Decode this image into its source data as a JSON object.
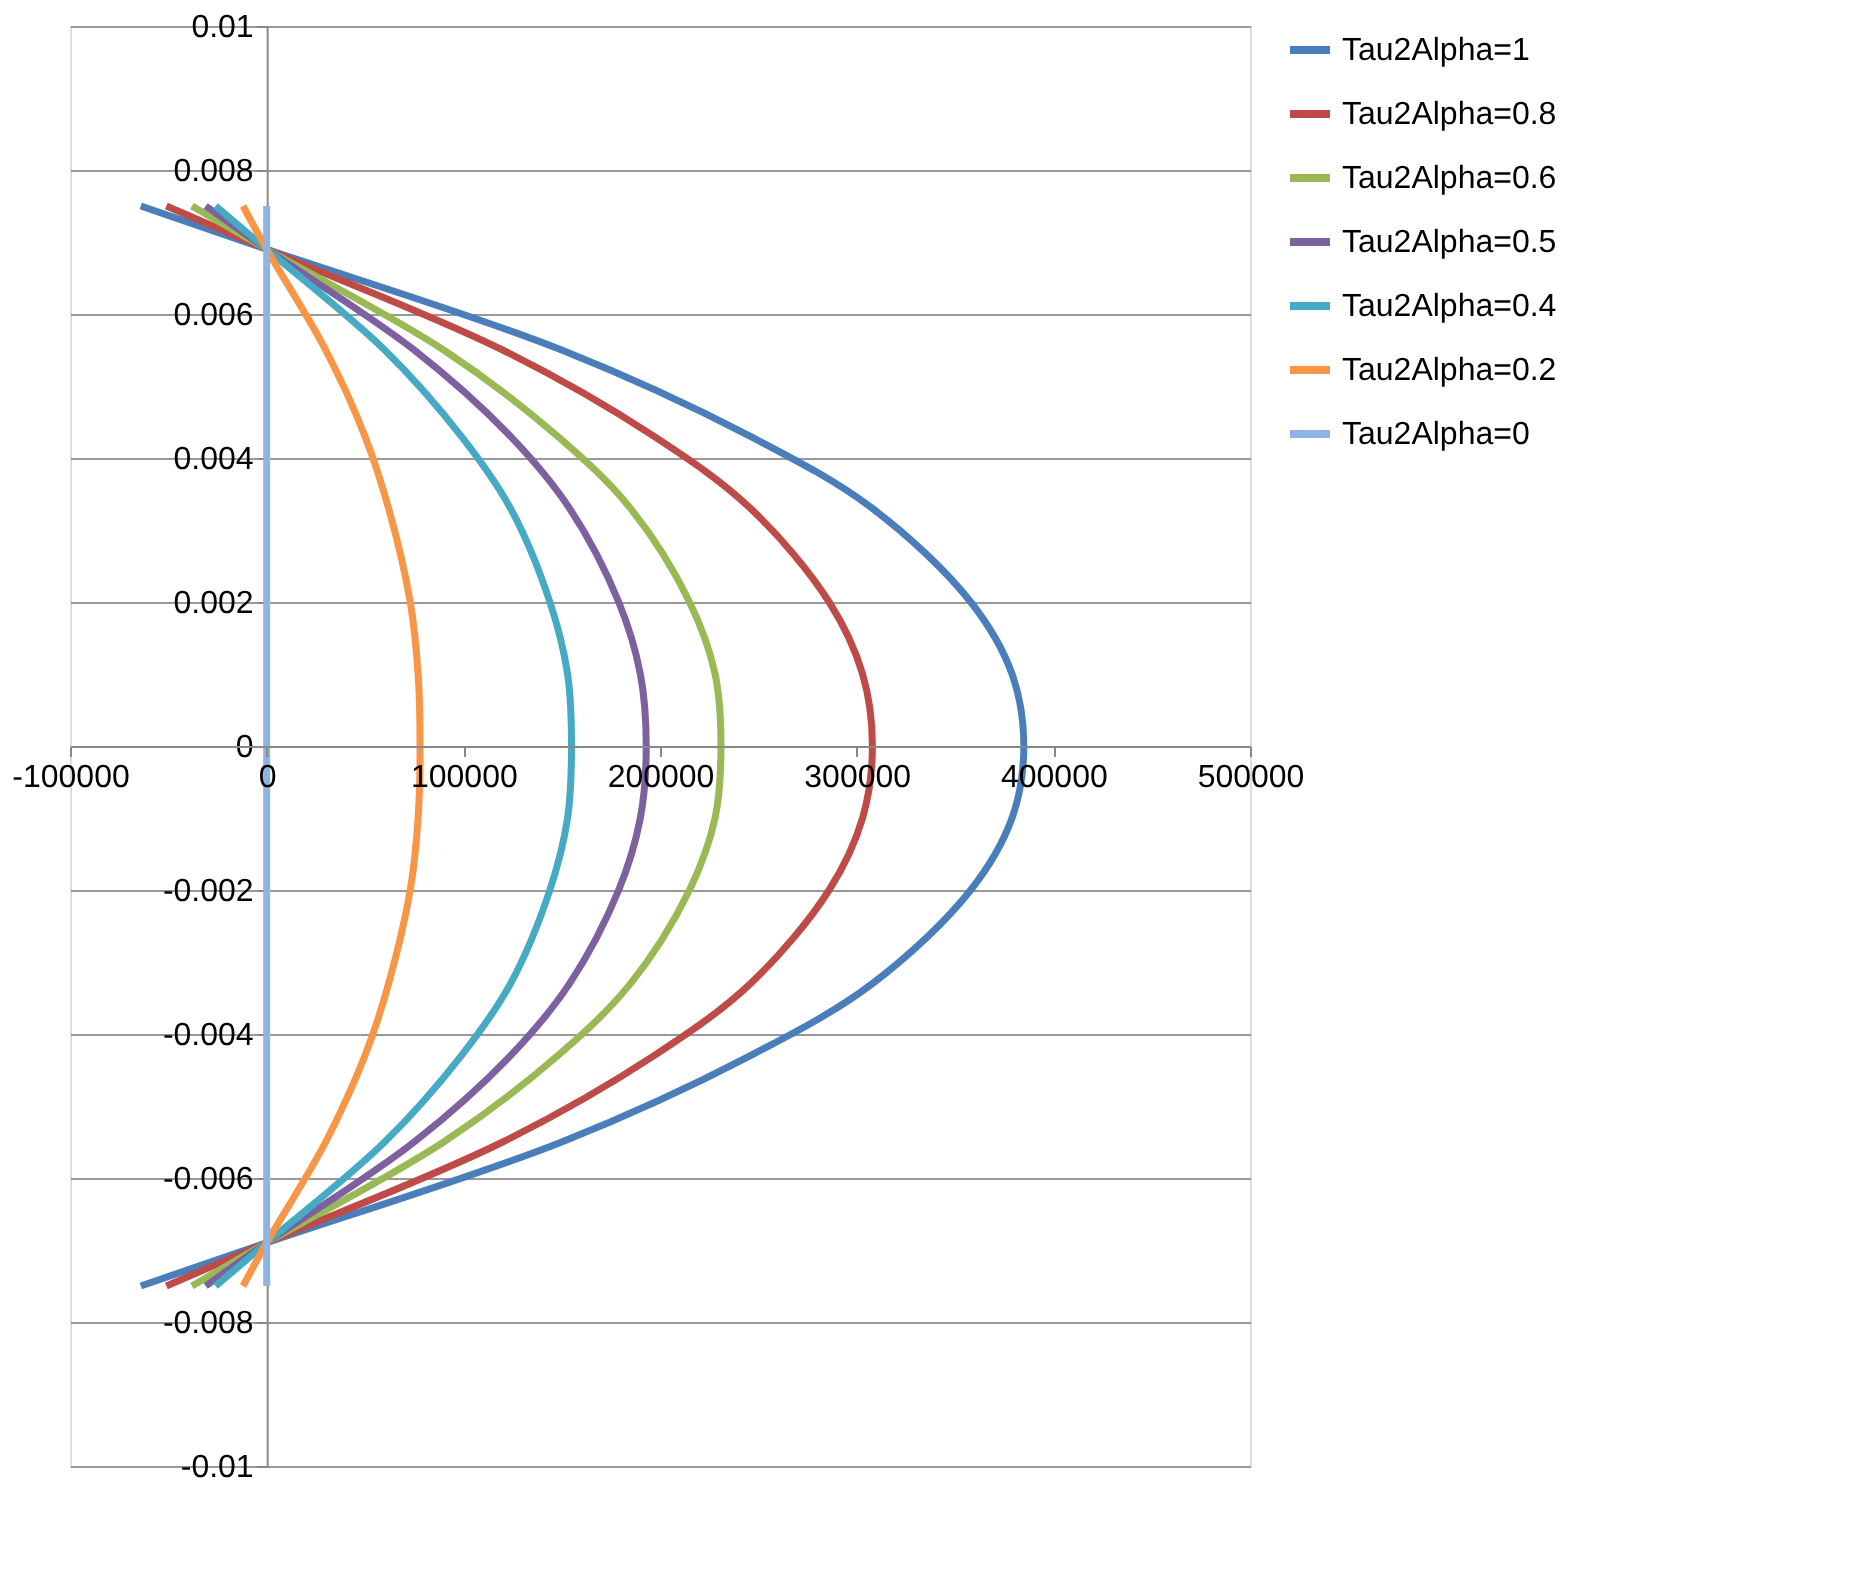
{
  "chart_data": {
    "type": "line",
    "xlim": [
      -100000,
      500000
    ],
    "xticks": [
      -100000,
      0,
      100000,
      200000,
      300000,
      400000,
      500000
    ],
    "ylim": [
      -0.01,
      0.01
    ],
    "yticks": [
      -0.01,
      -0.008,
      -0.006,
      -0.004,
      -0.002,
      0,
      0.002,
      0.004,
      0.006,
      0.008,
      0.01
    ],
    "grid": "y",
    "legend": "right",
    "line_style": "solid",
    "series": [
      {
        "name": "Tau2Alpha=1",
        "color": "#4a7ebb",
        "x": [
          -64000,
          0,
          150000,
          246000,
          308000,
          358000,
          379000,
          385000,
          379000,
          358000,
          308000,
          246000,
          150000,
          0,
          -64000
        ],
        "values": [
          0.0075,
          0.0069,
          0.0055,
          0.0043,
          0.0033,
          0.002,
          0.001,
          0,
          -0.001,
          -0.002,
          -0.0033,
          -0.0043,
          -0.0055,
          -0.0069,
          -0.0075
        ]
      },
      {
        "name": "Tau2Alpha=0.8",
        "color": "#be4b48",
        "x": [
          -51000,
          0,
          120000,
          197000,
          246000,
          286000,
          303000,
          308000,
          303000,
          286000,
          246000,
          197000,
          120000,
          0,
          -51000
        ],
        "values": [
          0.0075,
          0.0069,
          0.0055,
          0.0043,
          0.0033,
          0.002,
          0.001,
          0,
          -0.001,
          -0.002,
          -0.0033,
          -0.0043,
          -0.0055,
          -0.0069,
          -0.0075
        ]
      },
      {
        "name": "Tau2Alpha=0.6",
        "color": "#98b954",
        "x": [
          -38000,
          0,
          90000,
          148000,
          185000,
          215000,
          228000,
          231000,
          228000,
          215000,
          185000,
          148000,
          90000,
          0,
          -38000
        ],
        "values": [
          0.0075,
          0.0069,
          0.0055,
          0.0043,
          0.0033,
          0.002,
          0.001,
          0,
          -0.001,
          -0.002,
          -0.0033,
          -0.0043,
          -0.0055,
          -0.0069,
          -0.0075
        ]
      },
      {
        "name": "Tau2Alpha=0.5",
        "color": "#7d60a0",
        "x": [
          -31000,
          0,
          75000,
          124000,
          154000,
          179000,
          190000,
          193000,
          190000,
          179000,
          154000,
          124000,
          75000,
          0,
          -31000
        ],
        "values": [
          0.0075,
          0.0069,
          0.0055,
          0.0043,
          0.0033,
          0.002,
          0.001,
          0,
          -0.001,
          -0.002,
          -0.0033,
          -0.0043,
          -0.0055,
          -0.0069,
          -0.0075
        ]
      },
      {
        "name": "Tau2Alpha=0.4",
        "color": "#46aac5",
        "x": [
          -26000,
          0,
          60000,
          99000,
          124000,
          144000,
          153000,
          155000,
          153000,
          144000,
          124000,
          99000,
          60000,
          0,
          -26000
        ],
        "values": [
          0.0075,
          0.0069,
          0.0055,
          0.0043,
          0.0033,
          0.002,
          0.001,
          0,
          -0.001,
          -0.002,
          -0.0033,
          -0.0043,
          -0.0055,
          -0.0069,
          -0.0075
        ]
      },
      {
        "name": "Tau2Alpha=0.2",
        "color": "#f79646",
        "x": [
          -12000,
          0,
          30000,
          50000,
          62000,
          73000,
          77000,
          78000,
          77000,
          73000,
          62000,
          50000,
          30000,
          0,
          -12000
        ],
        "values": [
          0.0075,
          0.0069,
          0.0055,
          0.0043,
          0.0033,
          0.002,
          0.001,
          0,
          -0.001,
          -0.002,
          -0.0033,
          -0.0043,
          -0.0055,
          -0.0069,
          -0.0075
        ]
      },
      {
        "name": "Tau2Alpha=0",
        "color": "#8eb4e3",
        "x": [
          0,
          0
        ],
        "values": [
          0.0075,
          -0.0075
        ]
      }
    ]
  }
}
